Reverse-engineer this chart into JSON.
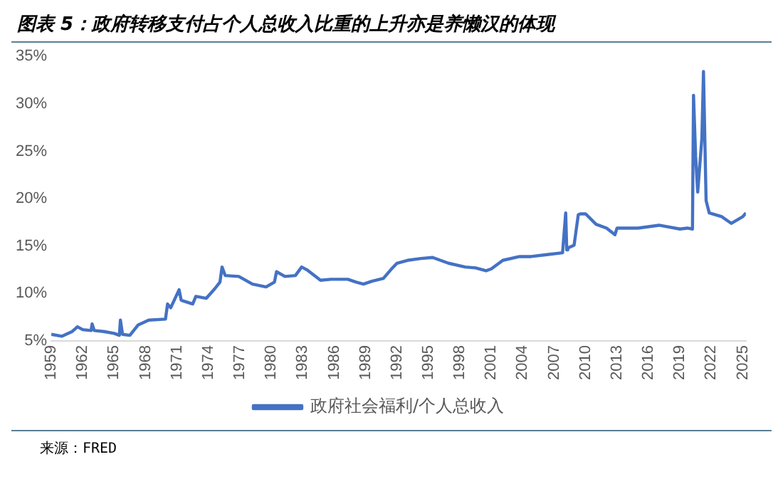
{
  "chart_data": {
    "type": "line",
    "title": "图表 5：政府转移支付占个人总收入比重的上升亦是养懒汉的体现",
    "annotations": [
      "来源：FRED"
    ],
    "series": [
      {
        "name": "政府社会福利/个人总收入",
        "color": "#4472c4",
        "x": [
          1959,
          1960,
          1961,
          1961.5,
          1962,
          1962.8,
          1962.9,
          1963.1,
          1964,
          1965,
          1965.5,
          1965.6,
          1965.8,
          1966.5,
          1967.3,
          1968.3,
          1969.9,
          1970.1,
          1970.4,
          1971.2,
          1971.4,
          1972.5,
          1972.8,
          1973.8,
          1974.6,
          1975.1,
          1975.3,
          1975.6,
          1976.9,
          1978.2,
          1979.5,
          1980.3,
          1980.5,
          1981.3,
          1982.3,
          1982.9,
          1983.4,
          1984.7,
          1985.7,
          1987.3,
          1988.1,
          1988.8,
          1989.6,
          1990.7,
          1991.4,
          1992,
          1993,
          1994.3,
          1995.4,
          1996.9,
          1998.5,
          1999.5,
          2000.5,
          2001,
          2002.1,
          2003.7,
          2004.8,
          2006.3,
          2007.8,
          2008.1,
          2008.2,
          2008.3,
          2008.9,
          2009.3,
          2009.5,
          2010,
          2011,
          2012,
          2012.8,
          2013,
          2015,
          2017,
          2019,
          2019.7,
          2020.2,
          2020.3,
          2020.5,
          2020.7,
          2021.1,
          2021.25,
          2021.5,
          2021.8,
          2023,
          2023.9,
          2025,
          2025.3
        ],
        "values": [
          5.7,
          5.5,
          6.0,
          6.5,
          6.2,
          6.1,
          6.8,
          6.1,
          6.0,
          5.8,
          5.6,
          7.2,
          5.7,
          5.6,
          6.7,
          7.2,
          7.3,
          8.9,
          8.5,
          10.4,
          9.3,
          8.9,
          9.7,
          9.5,
          10.5,
          11.2,
          12.8,
          11.9,
          11.8,
          11.0,
          10.7,
          11.2,
          12.3,
          11.8,
          11.9,
          12.8,
          12.5,
          11.4,
          11.5,
          11.5,
          11.2,
          11.0,
          11.3,
          11.6,
          12.5,
          13.2,
          13.5,
          13.7,
          13.8,
          13.2,
          12.8,
          12.7,
          12.4,
          12.6,
          13.5,
          13.9,
          13.9,
          14.1,
          14.3,
          18.5,
          14.6,
          14.8,
          15.1,
          18.3,
          18.4,
          18.4,
          17.3,
          16.9,
          16.2,
          16.9,
          16.9,
          17.2,
          16.8,
          16.9,
          16.8,
          30.9,
          24.5,
          20.7,
          26.4,
          33.4,
          19.8,
          18.5,
          18.1,
          17.4,
          18.1,
          18.5
        ]
      }
    ],
    "xlim": [
      1959,
      2025.3
    ],
    "xticks": [
      1959,
      1962,
      1965,
      1968,
      1971,
      1974,
      1977,
      1980,
      1983,
      1986,
      1989,
      1992,
      1995,
      1998,
      2001,
      2004,
      2007,
      2010,
      2013,
      2016,
      2019,
      2022,
      2025
    ],
    "ylim": [
      5,
      35
    ],
    "yticks": [
      {
        "value": 5,
        "label": "5%"
      },
      {
        "value": 10,
        "label": "10%"
      },
      {
        "value": 15,
        "label": "15%"
      },
      {
        "value": 20,
        "label": "20%"
      },
      {
        "value": 25,
        "label": "25%"
      },
      {
        "value": 30,
        "label": "30%"
      },
      {
        "value": 35,
        "label": "35%"
      }
    ],
    "grid": false,
    "legend": "bottom"
  }
}
